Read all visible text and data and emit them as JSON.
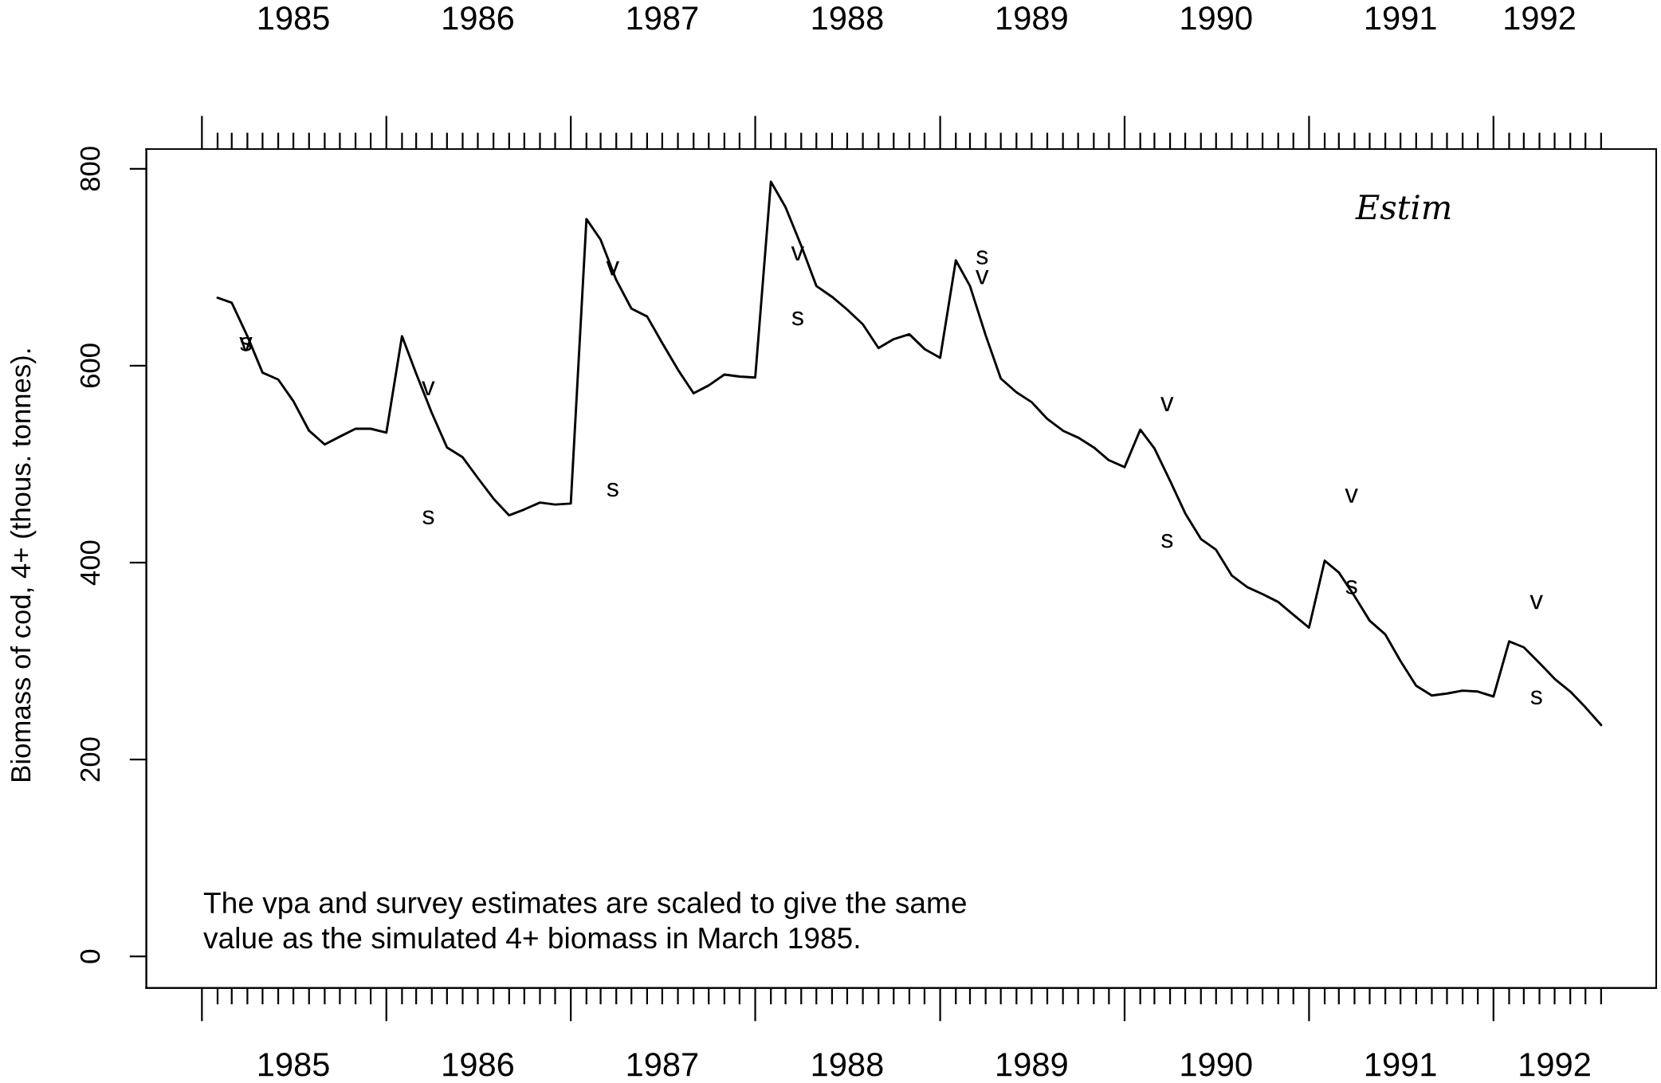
{
  "chart_data": {
    "type": "line",
    "ylabel": "Biomass of cod, 4+ (thous. tonnes).",
    "x": [
      "1985-02",
      "1985-03",
      "1985-04",
      "1985-05",
      "1985-06",
      "1985-07",
      "1985-08",
      "1985-09",
      "1985-10",
      "1985-11",
      "1985-12",
      "1986-01",
      "1986-02",
      "1986-03",
      "1986-04",
      "1986-05",
      "1986-06",
      "1986-07",
      "1986-08",
      "1986-09",
      "1986-10",
      "1986-11",
      "1986-12",
      "1987-01",
      "1987-02",
      "1987-03",
      "1987-04",
      "1987-05",
      "1987-06",
      "1987-07",
      "1987-08",
      "1987-09",
      "1987-10",
      "1987-11",
      "1987-12",
      "1988-01",
      "1988-02",
      "1988-03",
      "1988-04",
      "1988-05",
      "1988-06",
      "1988-07",
      "1988-08",
      "1988-09",
      "1988-10",
      "1988-11",
      "1988-12",
      "1989-01",
      "1989-02",
      "1989-03",
      "1989-04",
      "1989-05",
      "1989-06",
      "1989-07",
      "1989-08",
      "1989-09",
      "1989-10",
      "1989-11",
      "1989-12",
      "1990-01",
      "1990-02",
      "1990-03",
      "1990-04",
      "1990-05",
      "1990-06",
      "1990-07",
      "1990-08",
      "1990-09",
      "1990-10",
      "1990-11",
      "1990-12",
      "1991-01",
      "1991-02",
      "1991-03",
      "1991-04",
      "1991-05",
      "1991-06",
      "1991-07",
      "1991-08",
      "1991-09",
      "1991-10",
      "1991-11",
      "1991-12",
      "1992-01",
      "1992-02",
      "1992-03",
      "1992-04",
      "1992-05",
      "1992-06",
      "1992-07",
      "1992-08"
    ],
    "series": [
      {
        "color": "#000000",
        "values": [
          669,
          664,
          630,
          593,
          586,
          564,
          534,
          520,
          528,
          536,
          536,
          532,
          630,
          592,
          552,
          517,
          507,
          486,
          465,
          448,
          454,
          461,
          459,
          460,
          749,
          728,
          687,
          658,
          650,
          623,
          596,
          572,
          580,
          591,
          589,
          588,
          787,
          761,
          722,
          681,
          670,
          657,
          642,
          618,
          627,
          632,
          617,
          608,
          707,
          681,
          631,
          587,
          573,
          563,
          546,
          534,
          527,
          517,
          504,
          497,
          535,
          516,
          483,
          450,
          424,
          413,
          387,
          375,
          368,
          360,
          347,
          334,
          402,
          390,
          366,
          341,
          327,
          300,
          275,
          265,
          267,
          270,
          269,
          264,
          320,
          314,
          298,
          282,
          269,
          253,
          235
        ]
      },
      {
        "type": "scatter",
        "marker": "v",
        "color": "#000000",
        "x": [
          "1985-03-29",
          "1986-03-25",
          "1987-03-25",
          "1988-03-25",
          "1989-03-25",
          "1990-03-26",
          "1991-03-26",
          "1992-03-26"
        ],
        "values": [
          622,
          577,
          699,
          714,
          690,
          561,
          468,
          360
        ]
      },
      {
        "type": "scatter",
        "marker": "s",
        "color": "#000000",
        "x": [
          "1985-03-29",
          "1986-03-25",
          "1987-03-25",
          "1988-03-25",
          "1989-03-25",
          "1990-03-26",
          "1991-03-26",
          "1992-03-26"
        ],
        "values": [
          622,
          446,
          474,
          648,
          710,
          422,
          375,
          263
        ]
      }
    ],
    "line_style": "solid",
    "xlim": [
      "1984-09-13",
      "1992-11-18"
    ],
    "ylim": [
      -32,
      820
    ],
    "yticks": [
      0,
      200,
      400,
      600,
      800
    ],
    "xticks": [
      {
        "value": "1985-07",
        "label": "1985"
      },
      {
        "value": "1986-07",
        "label": "1986"
      },
      {
        "value": "1987-07",
        "label": "1987"
      },
      {
        "value": "1988-07",
        "label": "1988"
      },
      {
        "value": "1989-07",
        "label": "1989"
      },
      {
        "value": "1990-07",
        "label": "1990"
      },
      {
        "value": "1991-07",
        "label": "1991"
      },
      {
        "value": "1992-05",
        "label": "1992"
      }
    ],
    "x2lim": [
      "1984-09-13",
      "1992-11-18"
    ],
    "x2ticks": [
      {
        "value": "1985-07",
        "label": "1985"
      },
      {
        "value": "1986-07",
        "label": "1986"
      },
      {
        "value": "1987-07",
        "label": "1987"
      },
      {
        "value": "1988-07",
        "label": "1988"
      },
      {
        "value": "1989-07",
        "label": "1989"
      },
      {
        "value": "1990-07",
        "label": "1990"
      },
      {
        "value": "1991-07",
        "label": "1991"
      },
      {
        "value": "1992-04",
        "label": "1992"
      }
    ],
    "annotations": [
      "The vpa and survey estimates are scaled to give the same\nvalue as the simulated 4+ biomass in March 1985.",
      "Estim"
    ]
  }
}
